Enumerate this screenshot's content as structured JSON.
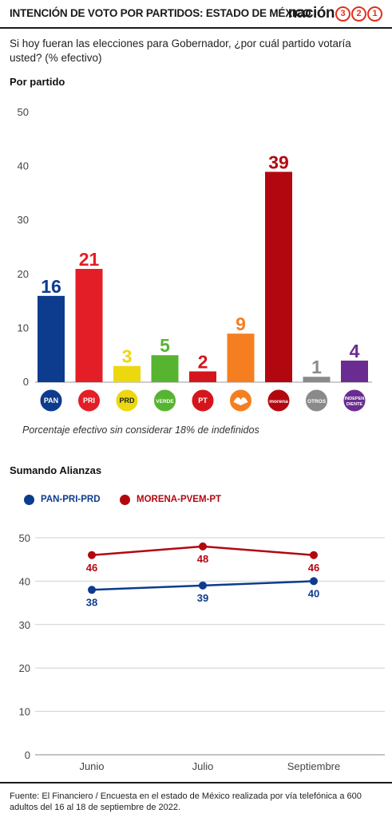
{
  "header": {
    "title": "INTENCIÓN DE VOTO POR PARTIDOS: ESTADO DE MÉXICO",
    "brand_word": "nación",
    "brand_digits": [
      "3",
      "2",
      "1"
    ]
  },
  "question": "Si hoy fueran las elecciones para Gobernador, ¿por cuál partido votaría usted? (% efectivo)",
  "section_party": "Por partido",
  "note": "Porcentaje efectivo sin considerar 18% de indefinidos",
  "section_alliances": "Sumando Alianzas",
  "source": "Fuente: El Financiero / Encuesta en el estado de México realizada por vía telefónica a 600 adultos del 16 al 18 de septiembre de 2022.",
  "colors": {
    "pan": "#0d3b8e",
    "pri": "#e41e26",
    "prd": "#ecd80f",
    "verde": "#57b431",
    "pt": "#d4161c",
    "mc": "#f57f20",
    "morena": "#b3070f",
    "otros": "#8a8a8a",
    "independiente": "#6a2c91",
    "alliance_a": "#0d3b8e",
    "alliance_b": "#b3070f"
  },
  "chart_data": [
    {
      "type": "bar",
      "categories": [
        "PAN",
        "PRI",
        "PRD",
        "VERDE",
        "PT",
        "MC",
        "morena",
        "OTROS",
        "INDEPENDIENTE"
      ],
      "values": [
        16,
        21,
        3,
        5,
        2,
        9,
        39,
        1,
        4
      ],
      "icon_labels": [
        "PAN",
        "PRI",
        "PRD",
        "VERDE",
        "PT",
        "",
        "morena",
        "OTROS",
        "INDEPEN DIENTE"
      ],
      "yticks": [
        0,
        10,
        20,
        30,
        40,
        50
      ],
      "ylim": [
        0,
        50
      ],
      "grid": false
    },
    {
      "type": "line",
      "x": [
        "Junio",
        "Julio",
        "Septiembre"
      ],
      "series": [
        {
          "name": "PAN-PRI-PRD",
          "values": [
            38,
            39,
            40
          ]
        },
        {
          "name": "MORENA-PVEM-PT",
          "values": [
            46,
            48,
            46
          ]
        }
      ],
      "yticks": [
        0,
        10,
        20,
        30,
        40,
        50
      ],
      "ylim": [
        0,
        50
      ],
      "grid": true,
      "legend": "top-left"
    }
  ]
}
